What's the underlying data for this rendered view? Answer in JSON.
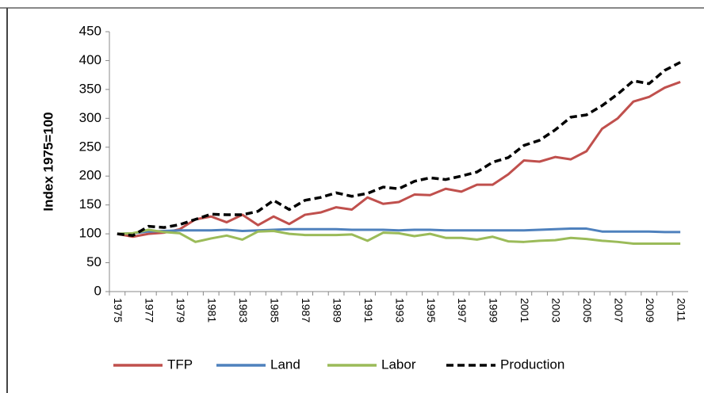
{
  "chart_data": {
    "type": "line",
    "y_label": "Index 1975=100",
    "categories": [
      "1975",
      null,
      "1977",
      null,
      "1979",
      null,
      "1981",
      null,
      "1983",
      null,
      "1985",
      null,
      "1987",
      null,
      "1989",
      null,
      "1991",
      null,
      "1993",
      null,
      "1995",
      null,
      "1997",
      null,
      "1999",
      null,
      "2001",
      null,
      "2003",
      null,
      "2005",
      null,
      "2007",
      null,
      "2009",
      null,
      "2011"
    ],
    "series": [
      {
        "name": "TFP",
        "color": "#c0504d",
        "dash": false,
        "values": [
          100,
          95,
          100,
          102,
          108,
          125,
          130,
          120,
          133,
          115,
          130,
          117,
          133,
          137,
          146,
          142,
          163,
          152,
          155,
          168,
          167,
          178,
          173,
          185,
          185,
          203,
          227,
          225,
          233,
          229,
          243,
          282,
          300,
          329,
          337,
          353,
          363
        ]
      },
      {
        "name": "Land",
        "color": "#4f81bd",
        "dash": false,
        "values": [
          100,
          101,
          104,
          105,
          106,
          106,
          106,
          107,
          105,
          106,
          107,
          108,
          108,
          108,
          108,
          107,
          107,
          107,
          106,
          107,
          107,
          106,
          106,
          106,
          106,
          106,
          106,
          107,
          108,
          109,
          109,
          104,
          104,
          104,
          104,
          103,
          103
        ]
      },
      {
        "name": "Labor",
        "color": "#9bbb59",
        "dash": false,
        "values": [
          100,
          101,
          107,
          103,
          101,
          86,
          92,
          97,
          90,
          104,
          105,
          100,
          98,
          98,
          98,
          99,
          88,
          102,
          101,
          96,
          100,
          93,
          93,
          90,
          95,
          87,
          86,
          88,
          89,
          93,
          91,
          88,
          86,
          83,
          83,
          83,
          83
        ]
      },
      {
        "name": "Production",
        "color": "#000000",
        "dash": true,
        "values": [
          100,
          97,
          113,
          111,
          116,
          125,
          134,
          133,
          133,
          139,
          158,
          142,
          158,
          163,
          171,
          165,
          170,
          181,
          178,
          191,
          197,
          194,
          200,
          207,
          224,
          232,
          253,
          262,
          280,
          302,
          306,
          322,
          342,
          365,
          360,
          383,
          397
        ]
      }
    ],
    "ylim": [
      0,
      450
    ],
    "yticks": [
      0,
      50,
      100,
      150,
      200,
      250,
      300,
      350,
      400,
      450
    ],
    "grid": false,
    "legend": "bottom"
  }
}
